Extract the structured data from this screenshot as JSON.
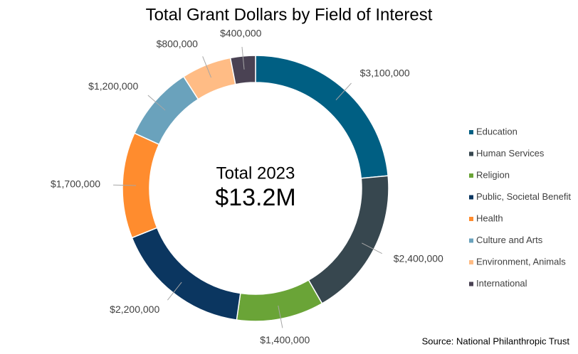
{
  "chart_data": {
    "type": "donut",
    "title": "Total Grant Dollars by Field of Interest",
    "center_label": [
      "Total 2023",
      "$13.2M"
    ],
    "source": "Source: National Philanthropic Trust",
    "categories": [
      "Education",
      "Human Services",
      "Religion",
      "Public, Societal Benefit",
      "Health",
      "Culture and Arts",
      "Environment, Animals",
      "International"
    ],
    "values": [
      3100000,
      2400000,
      1400000,
      2200000,
      1700000,
      1200000,
      800000,
      400000
    ],
    "value_labels": [
      "$3,100,000",
      "$2,400,000",
      "$1,400,000",
      "$2,200,000",
      "$1,700,000",
      "$1,200,000",
      "$800,000",
      "$400,000"
    ],
    "colors": [
      "#005f83",
      "#37474f",
      "#6aa437",
      "#0b3660",
      "#ff8c2e",
      "#6aa2bc",
      "#ffbc85",
      "#4a4253"
    ],
    "legend": "right"
  }
}
